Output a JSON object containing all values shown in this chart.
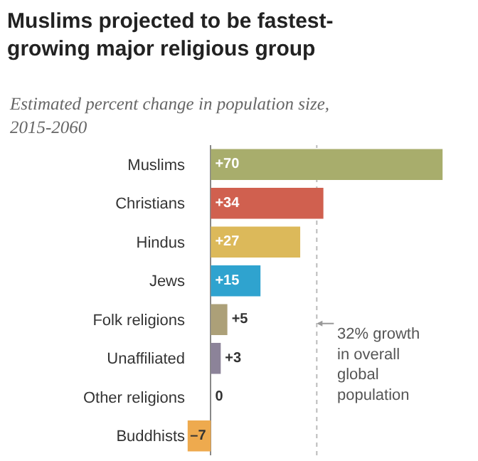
{
  "chart_data": {
    "type": "bar",
    "orientation": "horizontal",
    "title": "Muslims projected to be fastest-growing major religious group",
    "subtitle": "Estimated percent change in population size, 2015-2060",
    "categories": [
      "Muslims",
      "Christians",
      "Hindus",
      "Jews",
      "Folk religions",
      "Unaffiliated",
      "Other religions",
      "Buddhists"
    ],
    "values": [
      70,
      34,
      27,
      15,
      5,
      3,
      0,
      -7
    ],
    "value_labels": [
      "+70",
      "+34",
      "+27",
      "+15",
      "+5",
      "+3",
      "0",
      "–7"
    ],
    "colors": [
      "#a8ad6c",
      "#d0604f",
      "#dcb95a",
      "#2fa3cf",
      "#aca078",
      "#8c8399",
      "#9a9a9a",
      "#eeaa4e"
    ],
    "ref_lines": [
      {
        "axis": "x",
        "value": 32,
        "label": "32% growth in overall global population",
        "color": "#bbbbbb",
        "line_style": "dotted"
      }
    ]
  }
}
